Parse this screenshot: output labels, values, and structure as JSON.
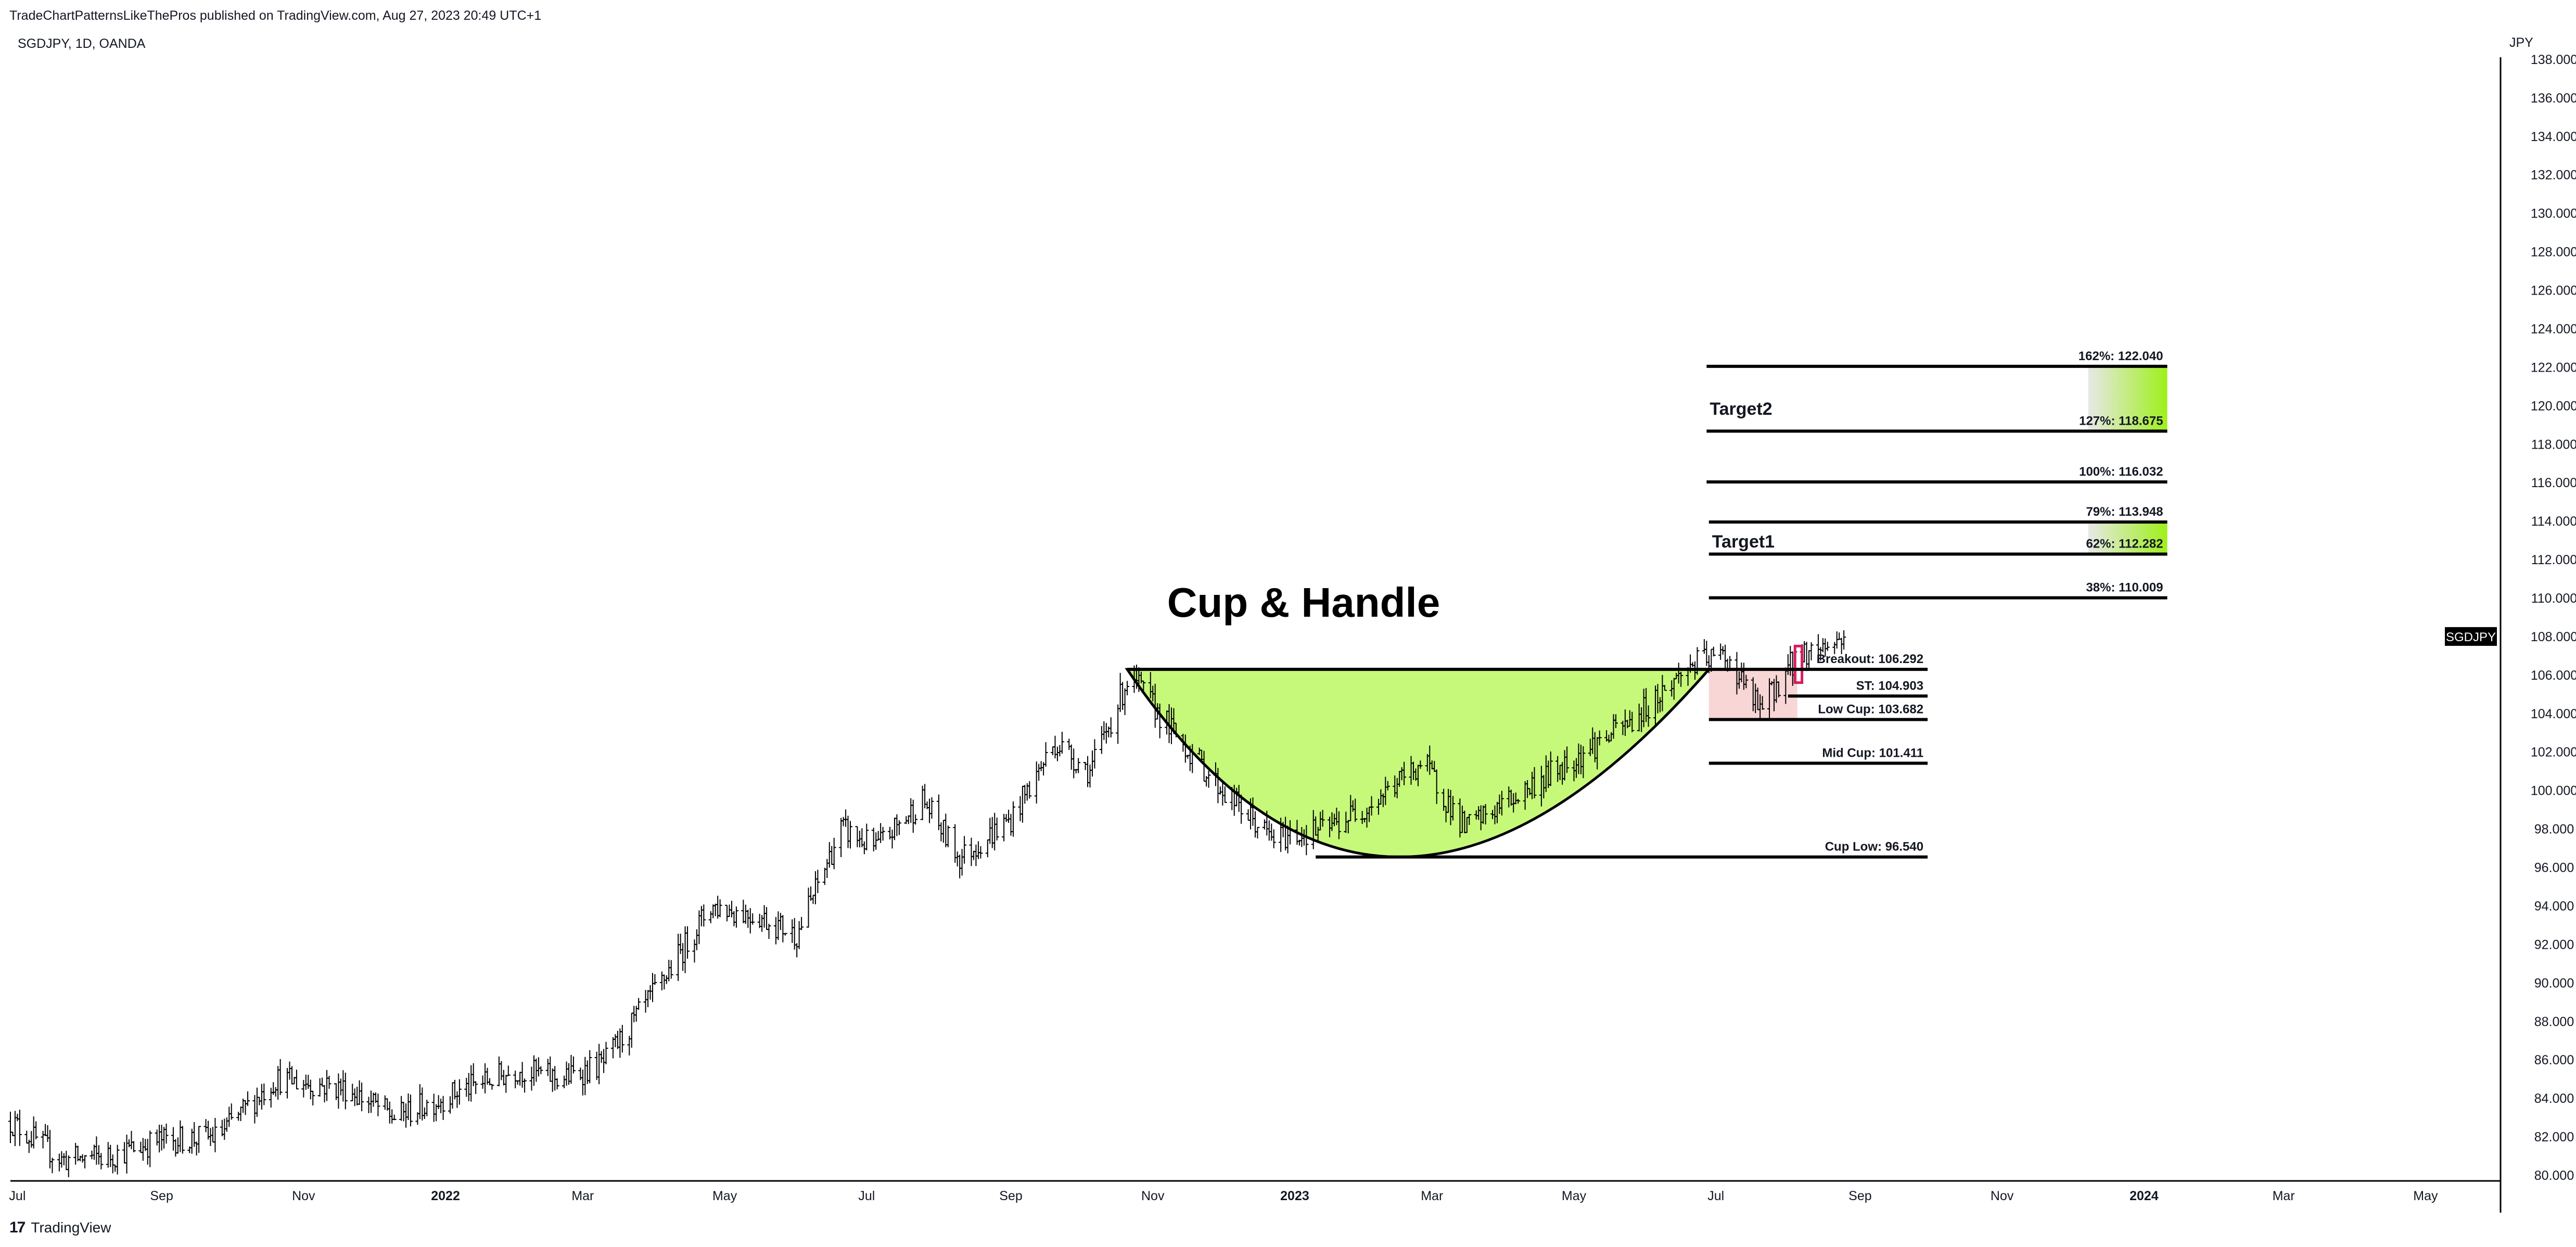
{
  "header": {
    "published": "TradeChartPatternsLikeThePros published on TradingView.com, Aug 27, 2023 20:49 UTC+1",
    "symbol": "SGDJPY, 1D, OANDA",
    "currency": "JPY"
  },
  "footer": {
    "brand": "TradingView",
    "logo_glyph": "17"
  },
  "chart_data": {
    "type": "ohlc",
    "symbol_tag": "SGDJPY",
    "last_price": 108.0,
    "ylim": [
      80,
      140
    ],
    "y_ticks": [
      "80.000",
      "82.000",
      "84.000",
      "86.000",
      "88.000",
      "90.000",
      "92.000",
      "94.000",
      "96.000",
      "98.000",
      "100.000",
      "102.000",
      "104.000",
      "106.000",
      "108.000",
      "110.000",
      "112.000",
      "114.000",
      "116.000",
      "118.000",
      "120.000",
      "122.000",
      "124.000",
      "126.000",
      "128.000",
      "130.000",
      "132.000",
      "134.000",
      "136.000",
      "138.000"
    ],
    "x_range": [
      "2021-06-28",
      "2024-05-31"
    ],
    "x_ticks": [
      {
        "label": "Jul",
        "date": "2021-07-01",
        "bold": false
      },
      {
        "label": "Sep",
        "date": "2021-09-01",
        "bold": false
      },
      {
        "label": "Nov",
        "date": "2021-11-01",
        "bold": false
      },
      {
        "label": "2022",
        "date": "2022-01-01",
        "bold": true
      },
      {
        "label": "Mar",
        "date": "2022-03-01",
        "bold": false
      },
      {
        "label": "May",
        "date": "2022-05-01",
        "bold": false
      },
      {
        "label": "Jul",
        "date": "2022-07-01",
        "bold": false
      },
      {
        "label": "Sep",
        "date": "2022-09-01",
        "bold": false
      },
      {
        "label": "Nov",
        "date": "2022-11-01",
        "bold": false
      },
      {
        "label": "2023",
        "date": "2023-01-01",
        "bold": true
      },
      {
        "label": "Mar",
        "date": "2023-03-01",
        "bold": false
      },
      {
        "label": "May",
        "date": "2023-05-01",
        "bold": false
      },
      {
        "label": "Jul",
        "date": "2023-07-01",
        "bold": false
      },
      {
        "label": "Sep",
        "date": "2023-09-01",
        "bold": false
      },
      {
        "label": "Nov",
        "date": "2023-11-01",
        "bold": false
      },
      {
        "label": "2024",
        "date": "2024-01-01",
        "bold": true
      },
      {
        "label": "Mar",
        "date": "2024-03-01",
        "bold": false
      },
      {
        "label": "May",
        "date": "2024-05-01",
        "bold": false
      }
    ],
    "price_path": [
      [
        "2021-06-28",
        82.8
      ],
      [
        "2021-07-20",
        80.8
      ],
      [
        "2021-08-10",
        81.0
      ],
      [
        "2021-08-31",
        81.8
      ],
      [
        "2021-09-25",
        82.0
      ],
      [
        "2021-10-20",
        85.0
      ],
      [
        "2021-11-20",
        84.5
      ],
      [
        "2021-12-10",
        83.0
      ],
      [
        "2022-01-10",
        84.5
      ],
      [
        "2022-02-01",
        85.5
      ],
      [
        "2022-02-20",
        85.0
      ],
      [
        "2022-03-10",
        85.8
      ],
      [
        "2022-04-01",
        89.5
      ],
      [
        "2022-04-25",
        94.0
      ],
      [
        "2022-05-15",
        93.5
      ],
      [
        "2022-06-01",
        92.5
      ],
      [
        "2022-06-20",
        98.0
      ],
      [
        "2022-07-05",
        97.0
      ],
      [
        "2022-07-25",
        99.5
      ],
      [
        "2022-08-10",
        96.5
      ],
      [
        "2022-09-01",
        98.5
      ],
      [
        "2022-09-20",
        102.5
      ],
      [
        "2022-10-05",
        101.0
      ],
      [
        "2022-10-22",
        106.0
      ],
      [
        "2022-11-10",
        103.0
      ],
      [
        "2022-12-01",
        100.0
      ],
      [
        "2022-12-22",
        97.5
      ],
      [
        "2023-01-15",
        98.0
      ],
      [
        "2023-02-05",
        99.5
      ],
      [
        "2023-02-25",
        101.5
      ],
      [
        "2023-03-15",
        98.0
      ],
      [
        "2023-04-10",
        100.0
      ],
      [
        "2023-05-05",
        102.0
      ],
      [
        "2023-05-25",
        103.5
      ],
      [
        "2023-06-20",
        106.5
      ],
      [
        "2023-07-05",
        107.0
      ],
      [
        "2023-07-20",
        104.2
      ],
      [
        "2023-08-05",
        107.0
      ],
      [
        "2023-08-27",
        108.0
      ]
    ],
    "title": "Cup & Handle",
    "cup": {
      "rim_left": {
        "date": "2022-10-21",
        "price": 106.292
      },
      "rim_right": {
        "date": "2023-06-28",
        "price": 106.292
      },
      "bottom": {
        "date": "2023-02-15",
        "price": 96.54
      },
      "fill": "#c6f97a"
    },
    "handle_box": {
      "start": "2023-06-28",
      "end": "2023-08-05",
      "top": 106.292,
      "bottom": 103.682,
      "fill": "#f9d6d6"
    },
    "handle_marker": {
      "start": "2023-08-04",
      "end": "2023-08-07",
      "top": 107.5,
      "bottom": 105.6,
      "color": "#d81b60"
    },
    "levels": [
      {
        "label": "Cup Low: 96.540",
        "price": 96.54,
        "start": "2023-01-10",
        "end": "2023-09-30"
      },
      {
        "label": "Mid Cup: 101.411",
        "price": 101.411,
        "start": "2023-06-28",
        "end": "2023-09-30"
      },
      {
        "label": "Low Cup: 103.682",
        "price": 103.682,
        "start": "2023-06-28",
        "end": "2023-09-30"
      },
      {
        "label": "ST: 104.903",
        "price": 104.903,
        "start": "2023-08-01",
        "end": "2023-09-30"
      },
      {
        "label": "Breakout: 106.292",
        "price": 106.292,
        "start": "2022-10-21",
        "end": "2023-09-30"
      },
      {
        "label": "38%: 110.009",
        "price": 110.009,
        "start": "2023-06-28",
        "end": "2024-01-11"
      },
      {
        "label": "62%: 112.282",
        "price": 112.282,
        "start": "2023-06-28",
        "end": "2024-01-11"
      },
      {
        "label": "79%: 113.948",
        "price": 113.948,
        "start": "2023-06-28",
        "end": "2024-01-11"
      },
      {
        "label": "100%: 116.032",
        "price": 116.032,
        "start": "2023-06-27",
        "end": "2024-01-11"
      },
      {
        "label": "127%: 118.675",
        "price": 118.675,
        "start": "2023-06-27",
        "end": "2024-01-11"
      },
      {
        "label": "162%: 122.040",
        "price": 122.04,
        "start": "2023-06-27",
        "end": "2024-01-11"
      }
    ],
    "target_zones": [
      {
        "name": "Target1",
        "top": 113.948,
        "bottom": 112.282,
        "start": "2023-12-08",
        "end": "2024-01-11",
        "label_price": 113.0,
        "label_date": "2023-06-28"
      },
      {
        "name": "Target2",
        "top": 122.04,
        "bottom": 118.675,
        "start": "2023-12-08",
        "end": "2024-01-11",
        "label_price": 119.9,
        "label_date": "2023-06-27"
      }
    ],
    "zone_gradient": [
      "#e8e8e8",
      "#9ef01a"
    ]
  }
}
